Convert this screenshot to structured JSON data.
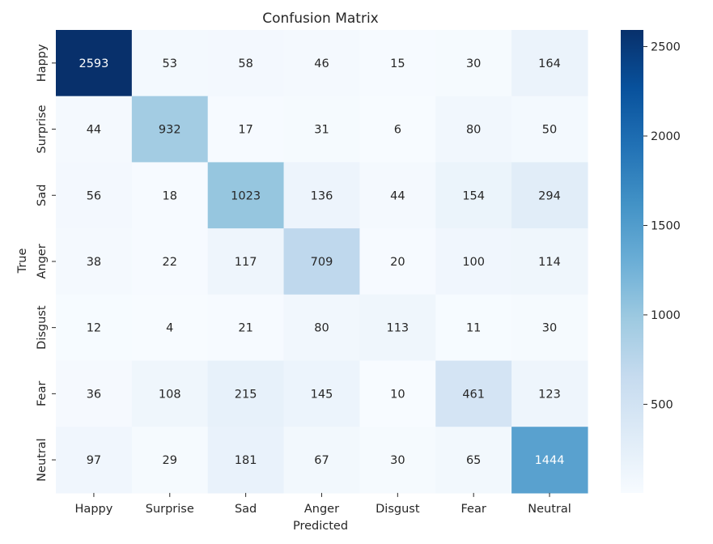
{
  "chart_data": {
    "type": "heatmap",
    "title": "Confusion Matrix",
    "xlabel": "Predicted",
    "ylabel": "True",
    "x_categories": [
      "Happy",
      "Surprise",
      "Sad",
      "Anger",
      "Disgust",
      "Fear",
      "Neutral"
    ],
    "y_categories": [
      "Happy",
      "Surprise",
      "Sad",
      "Anger",
      "Disgust",
      "Fear",
      "Neutral"
    ],
    "values": [
      [
        2593,
        53,
        58,
        46,
        15,
        30,
        164
      ],
      [
        44,
        932,
        17,
        31,
        6,
        80,
        50
      ],
      [
        56,
        18,
        1023,
        136,
        44,
        154,
        294
      ],
      [
        38,
        22,
        117,
        709,
        20,
        100,
        114
      ],
      [
        12,
        4,
        21,
        80,
        113,
        11,
        30
      ],
      [
        36,
        108,
        215,
        145,
        10,
        461,
        123
      ],
      [
        97,
        29,
        181,
        67,
        30,
        65,
        1444
      ]
    ],
    "colormap": "Blues",
    "vmin": 4,
    "vmax": 2593,
    "colorbar_ticks": [
      500,
      1000,
      1500,
      2000,
      2500
    ],
    "annotations": true,
    "grid": false
  }
}
